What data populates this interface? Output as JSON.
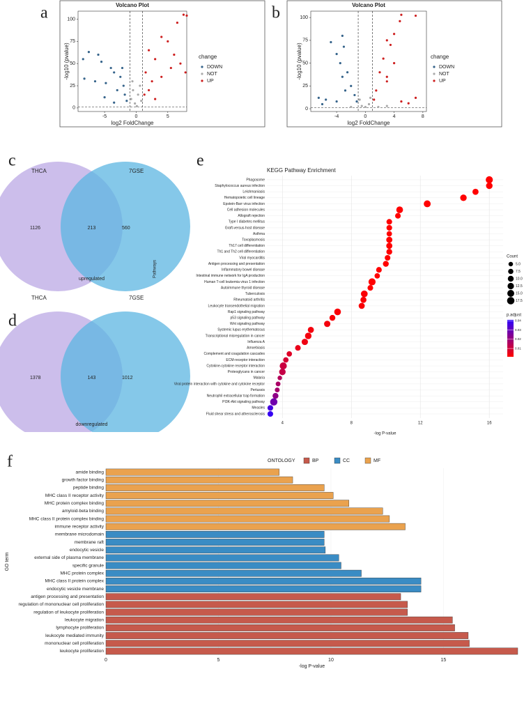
{
  "chart_data": [
    {
      "type": "scatter",
      "panel": "a",
      "title": "Volcano Plot",
      "x_label": "log2 FoldChange",
      "y_label": "-log10 (pvalue)",
      "xlim": [
        -9.2,
        8
      ],
      "ylim": [
        -4,
        109
      ],
      "xticks": [
        -5,
        0,
        5
      ],
      "yticks": [
        0,
        25,
        50,
        75,
        100
      ],
      "vlines": [
        -1,
        1
      ],
      "hline": 1.3,
      "legend_title": "change",
      "series": [
        {
          "name": "DOWN",
          "color": "#36648b",
          "x": [
            -7.5,
            -6,
            -8.4,
            -5.5,
            -4,
            -3.5,
            -2.5,
            -6.5,
            -4.8,
            -2,
            -3,
            -1.8,
            -5,
            -1.5,
            -3.5,
            -8.2,
            -2.2
          ],
          "values": [
            63,
            60,
            55,
            52,
            45,
            40,
            35,
            30,
            28,
            25,
            20,
            15,
            12,
            8,
            6,
            33,
            45
          ]
        },
        {
          "name": "NOT",
          "color": "#aaaaaa",
          "x": [
            -0.8,
            -0.5,
            0.3,
            0.6,
            -0.2,
            0.8,
            0.1,
            -0.6
          ],
          "values": [
            10,
            20,
            15,
            25,
            5,
            8,
            2,
            30
          ]
        },
        {
          "name": "UP",
          "color": "#cd1f1f",
          "x": [
            8,
            7.5,
            6.5,
            4,
            5,
            2,
            3,
            6,
            1.5,
            4,
            2.5,
            5.5,
            7,
            1.3,
            3,
            7.8,
            2
          ],
          "values": [
            104,
            105,
            96,
            80,
            75,
            65,
            55,
            60,
            40,
            35,
            30,
            45,
            50,
            15,
            10,
            40,
            20
          ]
        }
      ]
    },
    {
      "type": "scatter",
      "panel": "b",
      "title": "Volcano Plot",
      "x_label": "log2 FoldChange",
      "y_label": "-log10 (pvalue)",
      "xlim": [
        -7.6,
        8.5
      ],
      "ylim": [
        -3,
        107
      ],
      "xticks": [
        -4,
        0,
        4,
        8
      ],
      "yticks": [
        0,
        25,
        50,
        75,
        100
      ],
      "vlines": [
        -1,
        1
      ],
      "hline": 1.3,
      "legend_title": "change",
      "series": [
        {
          "name": "DOWN",
          "color": "#36648b",
          "x": [
            -3.2,
            -4.8,
            -3,
            -4,
            -3.5,
            -2.5,
            -3.2,
            -2,
            -1.5,
            -2.8,
            -1.2,
            -5.5,
            -6.5,
            -4,
            -6
          ],
          "values": [
            80,
            73,
            68,
            60,
            50,
            40,
            35,
            25,
            15,
            20,
            8,
            10,
            12,
            8,
            5
          ]
        },
        {
          "name": "NOT",
          "color": "#aaaaaa",
          "x": [
            -0.5,
            0.5,
            0,
            -0.8,
            0.7,
            1.8,
            3,
            -2
          ],
          "values": [
            3,
            5,
            2,
            10,
            12,
            2,
            3,
            2
          ]
        },
        {
          "name": "UP",
          "color": "#cd1f1f",
          "x": [
            5,
            7,
            4.8,
            4,
            3,
            3.5,
            2.5,
            4,
            2,
            3,
            1.5,
            1.2,
            5,
            7,
            6,
            3
          ],
          "values": [
            103,
            102,
            96,
            82,
            75,
            70,
            55,
            50,
            40,
            30,
            20,
            10,
            8,
            12,
            6,
            35
          ]
        }
      ]
    },
    {
      "type": "venn",
      "panel": "c",
      "sets": [
        {
          "name": "THCA",
          "color": "#c3b3e8"
        },
        {
          "name": "7GSE",
          "color": "#5cb6e2"
        }
      ],
      "only_first": 1126,
      "both": 213,
      "only_second": 560,
      "caption": "upregulated"
    },
    {
      "type": "venn",
      "panel": "d",
      "sets": [
        {
          "name": "THCA",
          "color": "#c3b3e8"
        },
        {
          "name": "7GSE",
          "color": "#5cb6e2"
        }
      ],
      "only_first": 1378,
      "both": 143,
      "only_second": 1012,
      "caption": "downregulated"
    },
    {
      "type": "dot",
      "panel": "e",
      "title": "KEGG Pathway Enrichment",
      "x_label": "-log P-value",
      "y_label": "Pathways",
      "categories": [
        "Phagosome",
        "Staphylococcus aureus infection",
        "Leishmaniasis",
        "Hematopoietic cell lineage",
        "Epstein-Barr virus infection",
        "Cell adhesion molecules",
        "Allograft rejection",
        "Type I diabetes mellitus",
        "Graft-versus-host disease",
        "Asthma",
        "Toxoplasmosis",
        "Th17 cell differentiation",
        "Th1 and Th2 cell differentiation",
        "Viral myocarditis",
        "Antigen processing and presentation",
        "Inflammatory bowel disease",
        "Intestinal immune network for IgA production",
        "Human T-cell leukemia virus 1 infection",
        "Autoimmune thyroid disease",
        "Tuberculosis",
        "Rheumatoid arthritis",
        "Leukocyte transendothelial migration",
        "Rap1 signaling pathway",
        "p53 signaling pathway",
        "Wnt signaling pathway",
        "Systemic lupus erythematosus",
        "Transcriptional misregulation in cancer",
        "Influenza A",
        "Amoebiasis",
        "Complement and coagulation cascades",
        "ECM-receptor interaction",
        "Cytokine-cytokine receptor interaction",
        "Proteoglycans in cancer",
        "Malaria",
        "Viral protein interaction with cytokine and cytokine receptor",
        "Pertussis",
        "Neutrophil extracellular trap formation",
        "PI3K-Akt signaling pathway",
        "Measles",
        "Fluid shear stress and atherosclerosis"
      ],
      "values": [
        16.0,
        16.0,
        15.2,
        14.5,
        12.4,
        10.8,
        10.7,
        10.2,
        10.2,
        10.2,
        10.2,
        10.2,
        10.2,
        10.1,
        10.0,
        9.6,
        9.5,
        9.2,
        9.1,
        8.75,
        8.7,
        8.6,
        7.2,
        6.9,
        6.6,
        5.65,
        5.5,
        5.3,
        4.9,
        4.4,
        4.2,
        4.05,
        4.0,
        3.85,
        3.75,
        3.7,
        3.6,
        3.5,
        3.3,
        3.3
      ],
      "counts": [
        16,
        13,
        11,
        13,
        15,
        14,
        9,
        9,
        9,
        8,
        11,
        11,
        10,
        9,
        10,
        9,
        8,
        16,
        9,
        14,
        11,
        11,
        14,
        10,
        12,
        11,
        13,
        12,
        9,
        8,
        8,
        16,
        13,
        5,
        6,
        6,
        10,
        17,
        9,
        9
      ],
      "p_adjust": [
        0.001,
        0.001,
        0.001,
        0.001,
        0.001,
        0.001,
        0.001,
        0.001,
        0.001,
        0.001,
        0.001,
        0.001,
        0.001,
        0.001,
        0.001,
        0.001,
        0.001,
        0.001,
        0.001,
        0.002,
        0.002,
        0.002,
        0.002,
        0.002,
        0.003,
        0.003,
        0.003,
        0.004,
        0.005,
        0.007,
        0.009,
        0.011,
        0.012,
        0.015,
        0.017,
        0.018,
        0.022,
        0.028,
        0.036,
        0.039
      ],
      "xlim": [
        3.1,
        16.8
      ],
      "xticks": [
        4,
        8,
        12,
        16
      ],
      "grid": true,
      "size_title": "Count",
      "size_ticks": [
        {
          "value": 5,
          "label": "5.0"
        },
        {
          "value": 7.5,
          "label": "7.5"
        },
        {
          "value": 10,
          "label": "10.0"
        },
        {
          "value": 12.5,
          "label": "12.5"
        },
        {
          "value": 15,
          "label": "15.0"
        },
        {
          "value": 17.5,
          "label": "17.5"
        }
      ],
      "color_title": "p.adjust",
      "color_lim": [
        0.001,
        0.041
      ],
      "color_ticks": [
        0.01,
        0.02,
        0.03,
        0.04
      ],
      "colors": [
        "#ff0000",
        "#2a00ff"
      ]
    },
    {
      "type": "bar",
      "panel": "f",
      "horizontal": true,
      "x_label": "-log P-value",
      "y_label": "GO term",
      "legend_title": "ONTOLOGY",
      "categories": [
        "amide binding",
        "growth factor binding",
        "peptide binding",
        "MHC class II receptor activity",
        "MHC protein complex binding",
        "amyloid-beta binding",
        "MHC class II protein complex binding",
        "immune receptor activity",
        "membrane microdomain",
        "membrane raft",
        "endocytic vesicle",
        "external side of plasma membrane",
        "specific granule",
        "MHC protein complex",
        "MHC class II protein complex",
        "endocytic vesicle membrane",
        "antigen processing and presentation",
        "regulation of mononuclear cell proliferation",
        "regulation of leukocyte proliferation",
        "leukocyte migration",
        "lymphocyte proliferation",
        "leukocyte mediated immunity",
        "mononuclear cell proliferation",
        "leukocyte proliferation"
      ],
      "series": [
        {
          "name": "BP",
          "color": "#c65a4c",
          "values": [
            null,
            null,
            null,
            null,
            null,
            null,
            null,
            null,
            null,
            null,
            null,
            null,
            null,
            null,
            null,
            null,
            13.1,
            13.4,
            13.4,
            15.4,
            15.5,
            16.1,
            16.15,
            18.3
          ]
        },
        {
          "name": "CC",
          "color": "#3a8cc4",
          "values": [
            null,
            null,
            null,
            null,
            null,
            null,
            null,
            null,
            9.7,
            9.7,
            9.75,
            10.35,
            10.45,
            11.35,
            14.0,
            14.0,
            null,
            null,
            null,
            null,
            null,
            null,
            null,
            null
          ]
        },
        {
          "name": "MF",
          "color": "#eaa24e",
          "values": [
            7.7,
            8.3,
            9.7,
            10.1,
            10.8,
            12.3,
            12.6,
            13.3,
            null,
            null,
            null,
            null,
            null,
            null,
            null,
            null,
            null,
            null,
            null,
            null,
            null,
            null,
            null,
            null
          ]
        }
      ],
      "xlim": [
        0,
        18.3
      ],
      "xticks": [
        0,
        5,
        10,
        15
      ]
    }
  ]
}
